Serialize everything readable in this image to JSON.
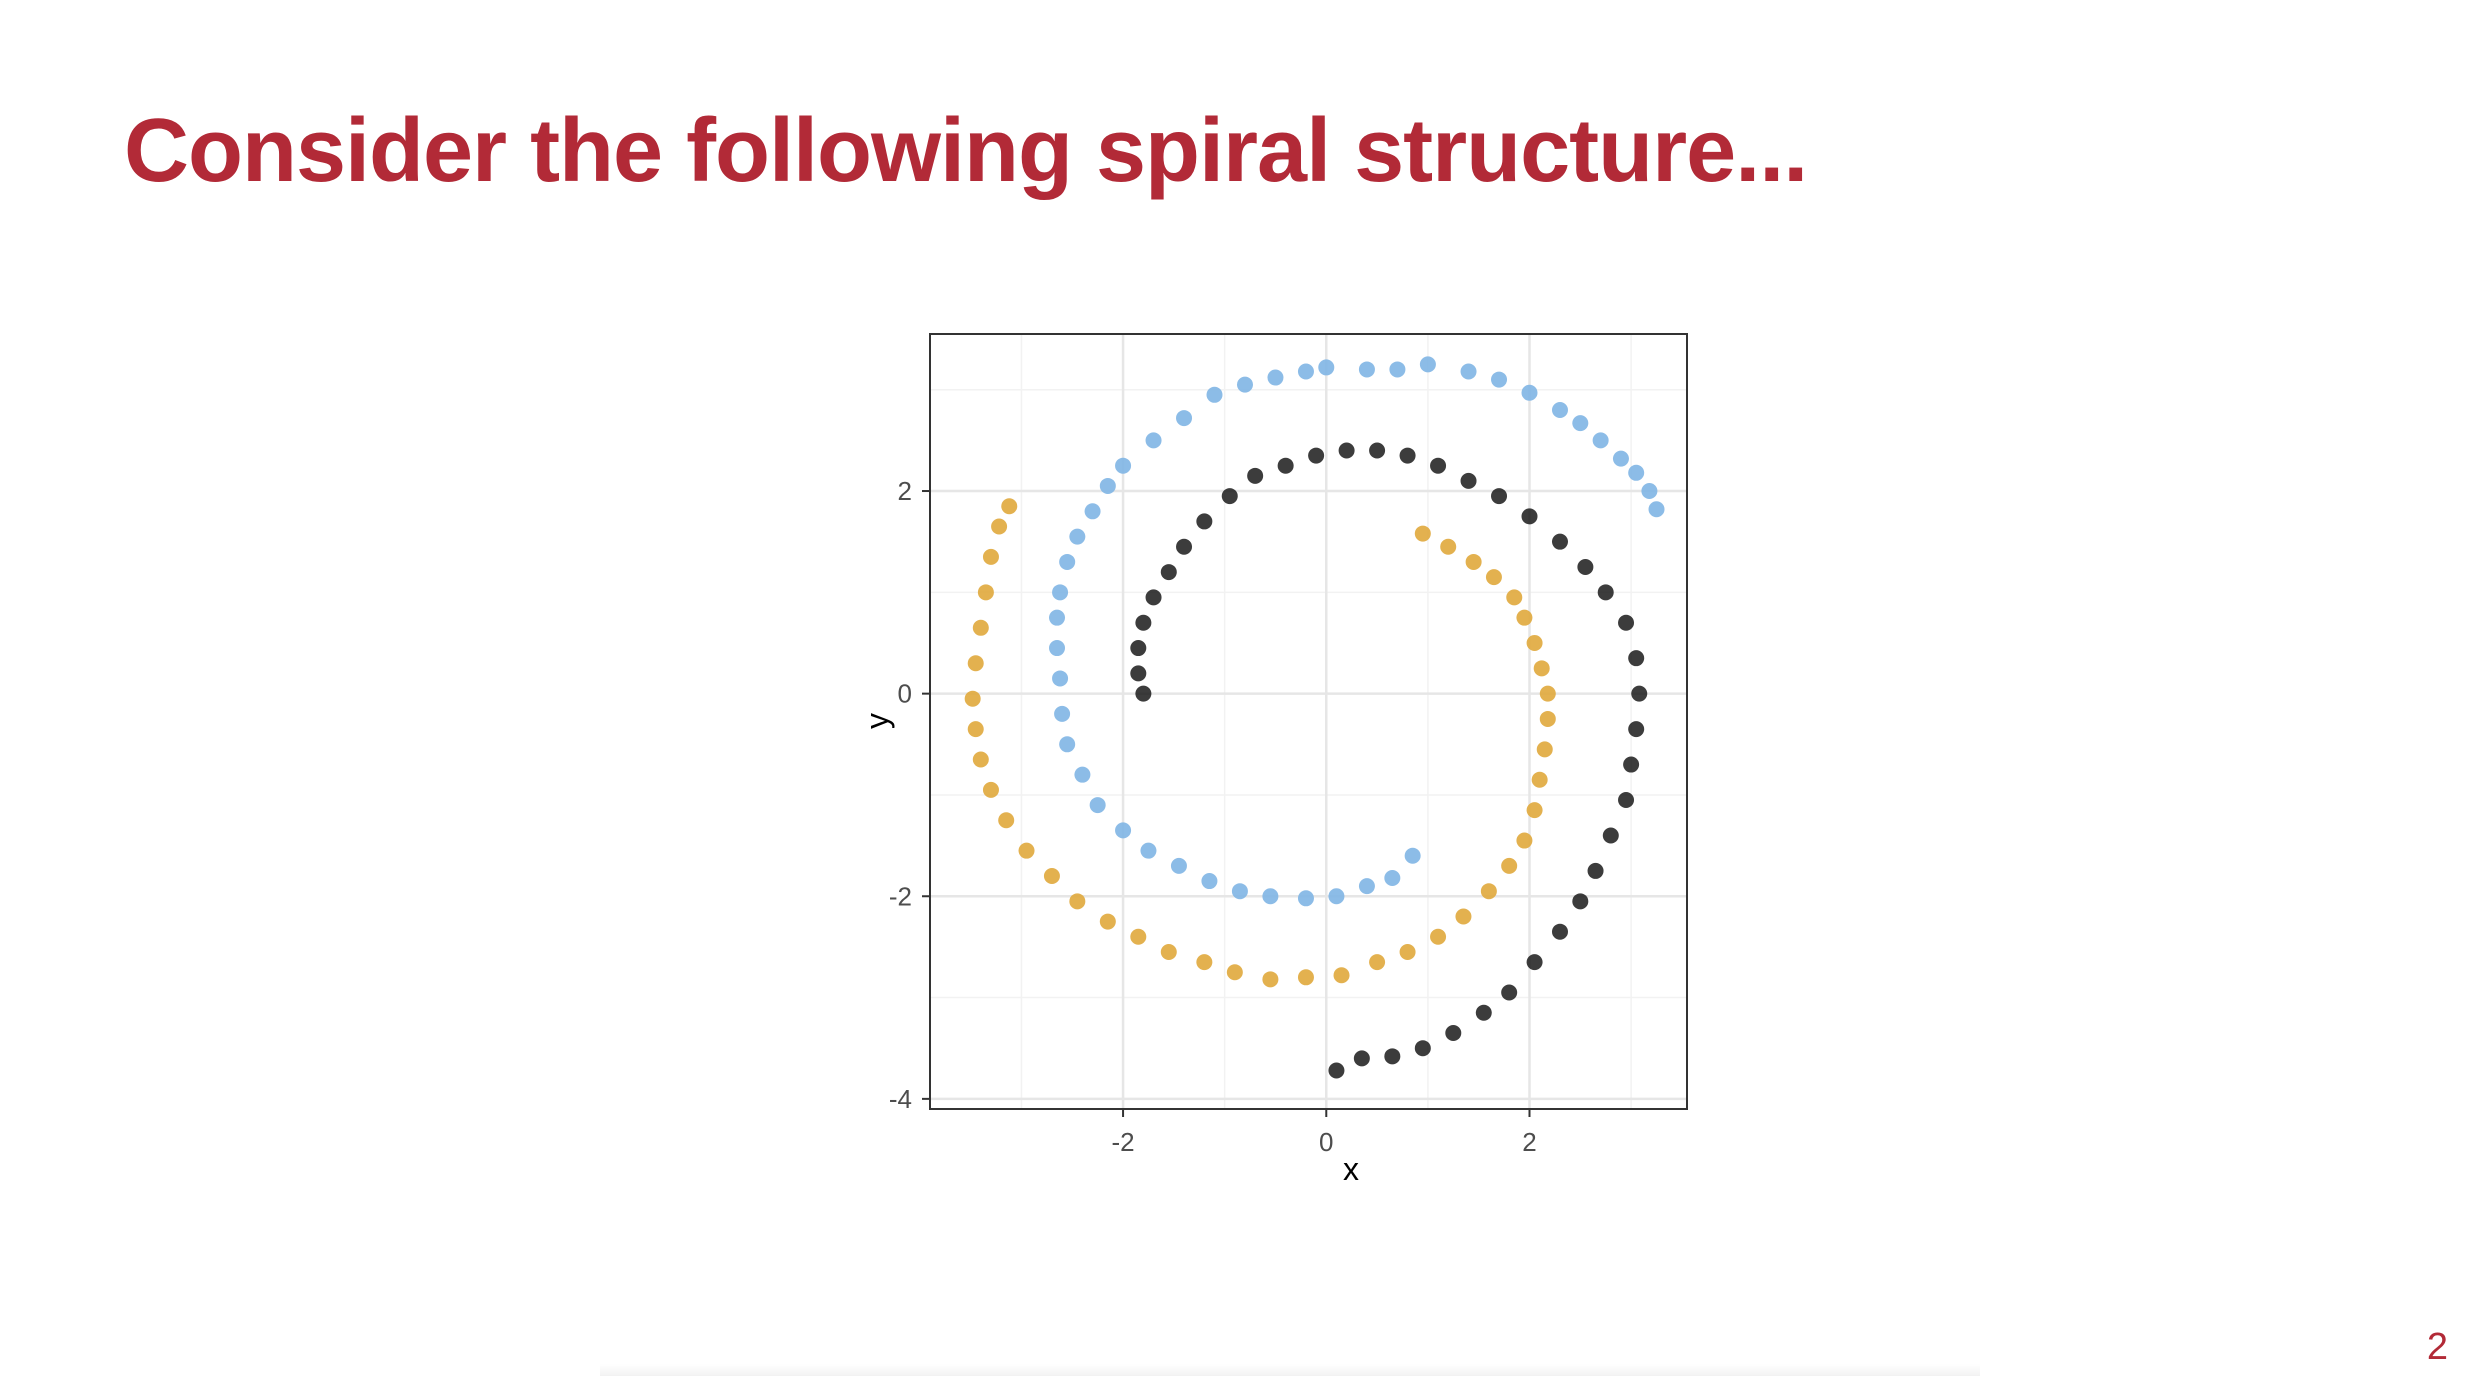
{
  "slide": {
    "title": "Consider the following spiral structure...",
    "page_number": "2"
  },
  "colors": {
    "title": "#b22a37",
    "series": [
      "#7fb5e4",
      "#111111",
      "#e0a83c"
    ]
  },
  "chart_data": {
    "type": "scatter",
    "title": "",
    "xlabel": "x",
    "ylabel": "y",
    "xlim": [
      -3.9,
      3.55
    ],
    "ylim": [
      -4.1,
      3.55
    ],
    "x_ticks": [
      -2,
      0,
      2
    ],
    "y_ticks": [
      -4,
      -2,
      0,
      2
    ],
    "grid": true,
    "legend": "none",
    "series": [
      {
        "color": "#7fb5e4",
        "points": [
          [
            3.25,
            1.82
          ],
          [
            3.18,
            2.0
          ],
          [
            3.05,
            2.18
          ],
          [
            2.9,
            2.32
          ],
          [
            2.7,
            2.5
          ],
          [
            2.5,
            2.67
          ],
          [
            2.3,
            2.8
          ],
          [
            2.0,
            2.97
          ],
          [
            1.7,
            3.1
          ],
          [
            1.4,
            3.18
          ],
          [
            1.0,
            3.25
          ],
          [
            0.7,
            3.2
          ],
          [
            0.4,
            3.2
          ],
          [
            0.0,
            3.22
          ],
          [
            -0.2,
            3.18
          ],
          [
            -0.5,
            3.12
          ],
          [
            -0.8,
            3.05
          ],
          [
            -1.1,
            2.95
          ],
          [
            -1.4,
            2.72
          ],
          [
            -1.7,
            2.5
          ],
          [
            -2.0,
            2.25
          ],
          [
            -2.15,
            2.05
          ],
          [
            -2.3,
            1.8
          ],
          [
            -2.45,
            1.55
          ],
          [
            -2.55,
            1.3
          ],
          [
            -2.62,
            1.0
          ],
          [
            -2.65,
            0.75
          ],
          [
            -2.65,
            0.45
          ],
          [
            -2.62,
            0.15
          ],
          [
            -2.6,
            -0.2
          ],
          [
            -2.55,
            -0.5
          ],
          [
            -2.4,
            -0.8
          ],
          [
            -2.25,
            -1.1
          ],
          [
            -2.0,
            -1.35
          ],
          [
            -1.75,
            -1.55
          ],
          [
            -1.45,
            -1.7
          ],
          [
            -1.15,
            -1.85
          ],
          [
            -0.85,
            -1.95
          ],
          [
            -0.55,
            -2.0
          ],
          [
            -0.2,
            -2.02
          ],
          [
            0.1,
            -2.0
          ],
          [
            0.4,
            -1.9
          ],
          [
            0.65,
            -1.82
          ],
          [
            0.85,
            -1.6
          ]
        ]
      },
      {
        "color": "#111111",
        "points": [
          [
            -1.8,
            0.0
          ],
          [
            -1.85,
            0.2
          ],
          [
            -1.85,
            0.45
          ],
          [
            -1.8,
            0.7
          ],
          [
            -1.7,
            0.95
          ],
          [
            -1.55,
            1.2
          ],
          [
            -1.4,
            1.45
          ],
          [
            -1.2,
            1.7
          ],
          [
            -0.95,
            1.95
          ],
          [
            -0.7,
            2.15
          ],
          [
            -0.4,
            2.25
          ],
          [
            -0.1,
            2.35
          ],
          [
            0.2,
            2.4
          ],
          [
            0.5,
            2.4
          ],
          [
            0.8,
            2.35
          ],
          [
            1.1,
            2.25
          ],
          [
            1.4,
            2.1
          ],
          [
            1.7,
            1.95
          ],
          [
            2.0,
            1.75
          ],
          [
            2.3,
            1.5
          ],
          [
            2.55,
            1.25
          ],
          [
            2.75,
            1.0
          ],
          [
            2.95,
            0.7
          ],
          [
            3.05,
            0.35
          ],
          [
            3.08,
            0.0
          ],
          [
            3.05,
            -0.35
          ],
          [
            3.0,
            -0.7
          ],
          [
            2.95,
            -1.05
          ],
          [
            2.8,
            -1.4
          ],
          [
            2.65,
            -1.75
          ],
          [
            2.5,
            -2.05
          ],
          [
            2.3,
            -2.35
          ],
          [
            2.05,
            -2.65
          ],
          [
            1.8,
            -2.95
          ],
          [
            1.55,
            -3.15
          ],
          [
            1.25,
            -3.35
          ],
          [
            0.95,
            -3.5
          ],
          [
            0.65,
            -3.58
          ],
          [
            0.35,
            -3.6
          ],
          [
            0.1,
            -3.72
          ]
        ]
      },
      {
        "color": "#e0a83c",
        "points": [
          [
            0.95,
            1.58
          ],
          [
            1.2,
            1.45
          ],
          [
            1.45,
            1.3
          ],
          [
            1.65,
            1.15
          ],
          [
            1.85,
            0.95
          ],
          [
            1.95,
            0.75
          ],
          [
            2.05,
            0.5
          ],
          [
            2.12,
            0.25
          ],
          [
            2.18,
            0.0
          ],
          [
            2.18,
            -0.25
          ],
          [
            2.15,
            -0.55
          ],
          [
            2.1,
            -0.85
          ],
          [
            2.05,
            -1.15
          ],
          [
            1.95,
            -1.45
          ],
          [
            1.8,
            -1.7
          ],
          [
            1.6,
            -1.95
          ],
          [
            1.35,
            -2.2
          ],
          [
            1.1,
            -2.4
          ],
          [
            0.8,
            -2.55
          ],
          [
            0.5,
            -2.65
          ],
          [
            0.15,
            -2.78
          ],
          [
            -0.2,
            -2.8
          ],
          [
            -0.55,
            -2.82
          ],
          [
            -0.9,
            -2.75
          ],
          [
            -1.2,
            -2.65
          ],
          [
            -1.55,
            -2.55
          ],
          [
            -1.85,
            -2.4
          ],
          [
            -2.15,
            -2.25
          ],
          [
            -2.45,
            -2.05
          ],
          [
            -2.7,
            -1.8
          ],
          [
            -2.95,
            -1.55
          ],
          [
            -3.15,
            -1.25
          ],
          [
            -3.3,
            -0.95
          ],
          [
            -3.4,
            -0.65
          ],
          [
            -3.45,
            -0.35
          ],
          [
            -3.48,
            -0.05
          ],
          [
            -3.45,
            0.3
          ],
          [
            -3.4,
            0.65
          ],
          [
            -3.35,
            1.0
          ],
          [
            -3.3,
            1.35
          ],
          [
            -3.22,
            1.65
          ],
          [
            -3.12,
            1.85
          ]
        ]
      }
    ]
  }
}
